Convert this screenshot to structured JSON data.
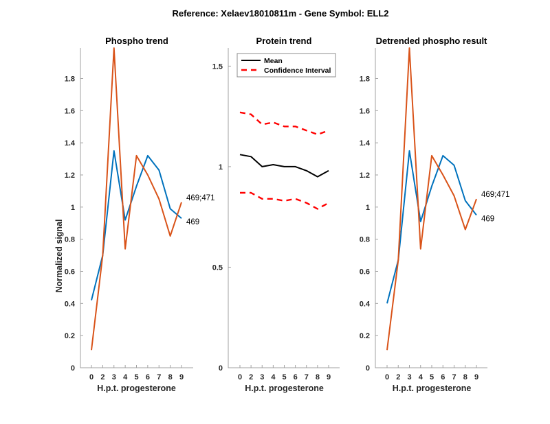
{
  "figure_title": "Reference:  Xelaev18010811m - Gene Symbol:  ELL2",
  "colors": {
    "series1": "#0072BD",
    "series2": "#D95319",
    "mean": "#000000",
    "ci": "#FF0000",
    "axis": "#A0A0A0"
  },
  "chart_data": [
    {
      "type": "line",
      "title": "Phospho trend",
      "xlabel": "H.p.t. progesterone",
      "ylabel": "Normalized signal",
      "categories": [
        "0",
        "2",
        "3",
        "4",
        "5",
        "6",
        "7",
        "8",
        "9"
      ],
      "ylim": [
        0,
        1.99
      ],
      "yticks": [
        0,
        0.2,
        0.4,
        0.6,
        0.8,
        1,
        1.2,
        1.4,
        1.6,
        1.8
      ],
      "ytick_labels": [
        "0",
        "0.2",
        "0.4",
        "0.6",
        "0.8",
        "1",
        "1.2",
        "1.4",
        "1.6",
        "1.8"
      ],
      "grid": false,
      "series": [
        {
          "name": "469",
          "color_key": "series1",
          "label": "469",
          "values": [
            0.42,
            0.7,
            1.35,
            0.92,
            1.13,
            1.32,
            1.23,
            0.99,
            0.93
          ]
        },
        {
          "name": "469;471",
          "color_key": "series2",
          "label": "469;471",
          "values": [
            0.11,
            0.7,
            1.99,
            0.74,
            1.32,
            1.2,
            1.05,
            0.82,
            1.03
          ]
        }
      ]
    },
    {
      "type": "line",
      "title": "Protein trend",
      "xlabel": "H.p.t. progesterone",
      "ylabel": "",
      "categories": [
        "0",
        "2",
        "3",
        "4",
        "5",
        "6",
        "7",
        "8",
        "9"
      ],
      "ylim": [
        0,
        1.59
      ],
      "yticks": [
        0,
        0.5,
        1,
        1.5
      ],
      "ytick_labels": [
        "0",
        "0.5",
        "1",
        "1.5"
      ],
      "grid": false,
      "legend": {
        "location": "top-left",
        "entries": [
          "Mean",
          "Confidence Interval"
        ]
      },
      "series": [
        {
          "name": "Mean",
          "color_key": "mean",
          "dashed": false,
          "values": [
            1.06,
            1.05,
            1.0,
            1.01,
            1.0,
            1.0,
            0.98,
            0.95,
            0.98
          ]
        },
        {
          "name": "Confidence Interval",
          "color_key": "ci",
          "dashed": true,
          "values": [
            1.27,
            1.26,
            1.21,
            1.22,
            1.2,
            1.2,
            1.18,
            1.16,
            1.18
          ]
        },
        {
          "name": "Confidence Interval",
          "color_key": "ci",
          "dashed": true,
          "values": [
            0.87,
            0.87,
            0.84,
            0.84,
            0.83,
            0.84,
            0.82,
            0.79,
            0.82
          ]
        }
      ]
    },
    {
      "type": "line",
      "title": "Detrended phospho result",
      "xlabel": "H.p.t. progesterone",
      "ylabel": "",
      "categories": [
        "0",
        "2",
        "3",
        "4",
        "5",
        "6",
        "7",
        "8",
        "9"
      ],
      "ylim": [
        0,
        1.99
      ],
      "yticks": [
        0,
        0.2,
        0.4,
        0.6,
        0.8,
        1,
        1.2,
        1.4,
        1.6,
        1.8
      ],
      "ytick_labels": [
        "0",
        "0.2",
        "0.4",
        "0.6",
        "0.8",
        "1",
        "1.2",
        "1.4",
        "1.6",
        "1.8"
      ],
      "grid": false,
      "series": [
        {
          "name": "469",
          "color_key": "series1",
          "label": "469",
          "values": [
            0.4,
            0.67,
            1.35,
            0.91,
            1.13,
            1.32,
            1.26,
            1.04,
            0.95
          ]
        },
        {
          "name": "469;471",
          "color_key": "series2",
          "label": "469;471",
          "values": [
            0.11,
            0.67,
            1.99,
            0.74,
            1.32,
            1.2,
            1.07,
            0.86,
            1.05
          ]
        }
      ]
    }
  ]
}
